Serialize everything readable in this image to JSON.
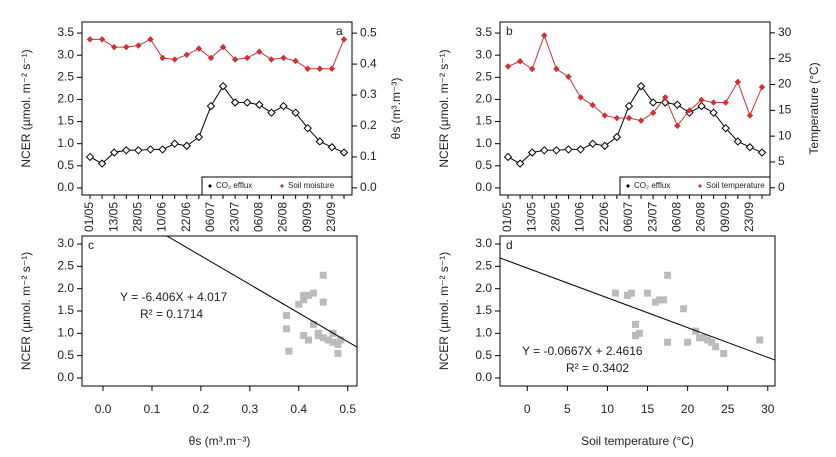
{
  "chart_data": [
    {
      "type": "line",
      "panel_label": "a",
      "categories": [
        "01/05",
        null,
        "13/05",
        null,
        "28/05",
        null,
        "10/06",
        null,
        "22/06",
        null,
        "06/07",
        null,
        "23/07",
        null,
        "06/08",
        null,
        "26/08",
        null,
        "09/09",
        null,
        "23/09",
        null
      ],
      "y_label": "NCER (µmol. m⁻² s⁻¹)",
      "y2_label": "θs (m³.m⁻³)",
      "ylim": [
        -0.16,
        3.75
      ],
      "yticks": [
        {
          "value": 0,
          "label": "0.0"
        },
        0.5,
        {
          "value": 1,
          "label": "1.0"
        },
        1.5,
        {
          "value": 2,
          "label": "2.0"
        },
        2.5,
        {
          "value": 3,
          "label": "3.0"
        },
        3.5
      ],
      "y2lim": [
        -0.023,
        0.536
      ],
      "y2ticks": [
        {
          "value": 0,
          "label": "0.0"
        },
        0.1,
        0.2,
        0.3,
        0.4,
        0.5
      ],
      "legend_position": "lower right",
      "series": [
        {
          "name": "CO₂ efflux",
          "color": "#000000",
          "values": [
            0.7,
            0.55,
            0.8,
            0.85,
            0.85,
            0.87,
            0.87,
            1.0,
            0.95,
            1.15,
            1.85,
            2.3,
            1.93,
            1.93,
            1.88,
            1.7,
            1.85,
            1.7,
            1.35,
            1.05,
            0.92,
            0.8
          ]
        },
        {
          "name": "Soil moisture",
          "color": "#cc3333",
          "axis": "y2",
          "values": [
            0.48,
            0.48,
            0.455,
            0.455,
            0.46,
            0.48,
            0.42,
            0.415,
            0.43,
            0.45,
            0.42,
            0.455,
            0.415,
            0.42,
            0.44,
            0.415,
            0.42,
            0.41,
            0.385,
            0.385,
            0.385,
            0.48
          ]
        }
      ]
    },
    {
      "type": "line",
      "panel_label": "b",
      "categories": [
        "01/05",
        null,
        "13/05",
        null,
        "28/05",
        null,
        "10/06",
        null,
        "22/06",
        null,
        "06/07",
        null,
        "23/07",
        null,
        "06/08",
        null,
        "26/08",
        null,
        "09/09",
        null,
        "23/09",
        null
      ],
      "y_label": "NCER (µmol. m⁻² s⁻¹)",
      "y2_label": "Temperature (°C)",
      "ylim": [
        -0.16,
        3.75
      ],
      "yticks": [
        {
          "value": 0,
          "label": "0.0"
        },
        0.5,
        {
          "value": 1,
          "label": "1.0"
        },
        1.5,
        {
          "value": 2,
          "label": "2.0"
        },
        2.5,
        {
          "value": 3,
          "label": "3.0"
        },
        3.5
      ],
      "y2lim": [
        -1.4,
        32.1
      ],
      "y2ticks": [
        0,
        5,
        10,
        15,
        20,
        25,
        30
      ],
      "legend_position": "lower right",
      "series": [
        {
          "name": "CO₂ efflux",
          "color": "#000000",
          "values": [
            0.7,
            0.55,
            0.8,
            0.85,
            0.85,
            0.87,
            0.87,
            1.0,
            0.95,
            1.15,
            1.85,
            2.3,
            1.93,
            1.93,
            1.88,
            1.7,
            1.85,
            1.7,
            1.35,
            1.05,
            0.92,
            0.8
          ]
        },
        {
          "name": "Soil temperature",
          "color": "#cc3333",
          "axis": "y2",
          "values": [
            23.5,
            24.5,
            23,
            29.5,
            23,
            21.5,
            17.5,
            16,
            14,
            13.5,
            13.5,
            13,
            14.5,
            17.5,
            12,
            15,
            17,
            16.5,
            16.5,
            20.5,
            14,
            19.5
          ]
        }
      ]
    },
    {
      "type": "scatter",
      "panel_label": "c",
      "color": "#bbbbbb",
      "x_label": "θs (m³.m⁻³)",
      "y_label": "NCER (µmol. m⁻² s⁻¹)",
      "x": [
        0.375,
        0.375,
        0.38,
        0.4,
        0.41,
        0.41,
        0.42,
        0.43,
        0.41,
        0.42,
        0.44,
        0.45,
        0.45,
        0.45,
        0.46,
        0.47,
        0.47,
        0.48,
        0.48,
        0.485,
        0.44,
        0.43
      ],
      "values": [
        1.4,
        1.1,
        0.6,
        1.65,
        1.75,
        1.85,
        1.85,
        1.9,
        0.95,
        0.85,
        1.0,
        2.3,
        1.7,
        0.9,
        0.85,
        1.0,
        0.8,
        0.75,
        0.55,
        0.85,
        0.95,
        1.2
      ],
      "xlim": [
        -0.043,
        0.519
      ],
      "xticks": [
        {
          "value": 0,
          "label": "0.0"
        },
        0.1,
        0.2,
        0.3,
        0.4,
        0.5
      ],
      "ylim": [
        -0.18,
        3.18
      ],
      "yticks": [
        {
          "value": 0,
          "label": "0.0"
        },
        0.5,
        {
          "value": 1,
          "label": "1.0"
        },
        1.5,
        {
          "value": 2,
          "label": "2.0"
        },
        2.5,
        {
          "value": 3,
          "label": "3.0"
        }
      ],
      "trendline": {
        "slope": -6.406,
        "intercept": 4.017
      },
      "equation": "Y = -6.406X + 4.017",
      "r_squared": "R² = 0.1714"
    },
    {
      "type": "scatter",
      "panel_label": "d",
      "color": "#bbbbbb",
      "x_label": "Soil temperature (°C)",
      "y_label": "NCER (µmol. m⁻² s⁻¹)",
      "x": [
        11,
        12.5,
        13,
        13.5,
        14,
        13.5,
        15,
        16,
        16.5,
        17,
        17.5,
        17.5,
        19.5,
        20,
        21,
        21.5,
        22,
        22.5,
        23,
        23.5,
        24.5,
        29
      ],
      "values": [
        1.9,
        1.85,
        1.9,
        1.2,
        1.0,
        0.95,
        1.9,
        1.7,
        1.75,
        1.75,
        2.3,
        0.8,
        1.55,
        0.8,
        1.05,
        0.9,
        0.9,
        0.85,
        0.8,
        0.7,
        0.55,
        0.85
      ],
      "xlim": [
        -3.4,
        30.9
      ],
      "xticks": [
        0,
        5,
        10,
        15,
        20,
        25,
        30
      ],
      "ylim": [
        -0.18,
        3.18
      ],
      "yticks": [
        {
          "value": 0,
          "label": "0.0"
        },
        0.5,
        {
          "value": 1,
          "label": "1.0"
        },
        1.5,
        {
          "value": 2,
          "label": "2.0"
        },
        2.5,
        {
          "value": 3,
          "label": "3.0"
        }
      ],
      "trendline": {
        "slope": -0.0667,
        "intercept": 2.4616
      },
      "equation": "Y = -0.0667X + 2.4616",
      "r_squared": "R² = 0.3402"
    }
  ]
}
